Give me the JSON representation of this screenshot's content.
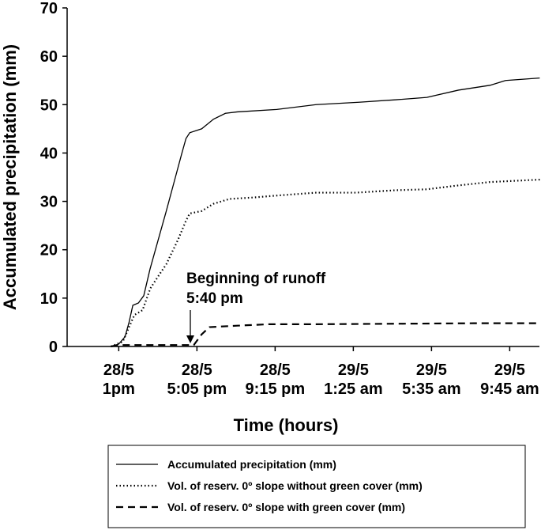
{
  "chart_data": {
    "type": "line",
    "y_label": "Accumulated precipitation  (mm)",
    "x_label": "Time (hours)",
    "annotations": [
      "Beginning of runoff",
      "5:40 pm"
    ],
    "xlim": [
      -165,
      1345
    ],
    "xticks": [
      {
        "value": 0,
        "label": "28/5\n1pm"
      },
      {
        "value": 250,
        "label": "28/5\n5:05 pm"
      },
      {
        "value": 500,
        "label": "28/5\n9:15 pm"
      },
      {
        "value": 750,
        "label": "29/5\n1:25 am"
      },
      {
        "value": 1000,
        "label": "29/5\n5:35 am"
      },
      {
        "value": 1250,
        "label": "29/5\n9:45 am"
      }
    ],
    "ylim": [
      0,
      70
    ],
    "yticks": [
      0,
      10,
      20,
      30,
      40,
      50,
      60,
      70
    ],
    "series": [
      {
        "name": "Accumulated precipitation  (mm)",
        "color": "#000000",
        "style": "solid",
        "x": [
          -25,
          0,
          20,
          33,
          45,
          63,
          80,
          100,
          126,
          152,
          177,
          202,
          215,
          227,
          265,
          303,
          341,
          379,
          505,
          631,
          768,
          884,
          985,
          1086,
          1187,
          1237,
          1346
        ],
        "values": [
          0,
          0.5,
          2,
          5,
          8.5,
          9,
          10.5,
          16,
          22,
          28,
          34,
          40,
          43,
          44.2,
          45,
          47,
          48.2,
          48.5,
          49,
          50,
          50.5,
          51,
          51.5,
          53,
          54,
          55,
          55.5
        ]
      },
      {
        "name": "Vol. of reserv. 0º slope without green cover  (mm)",
        "color": "#000000",
        "style": "dotted",
        "x": [
          -25,
          13,
          33,
          50,
          76,
          101,
          126,
          152,
          189,
          215,
          227,
          265,
          303,
          354,
          429,
          505,
          631,
          758,
          884,
          985,
          1086,
          1187,
          1346
        ],
        "values": [
          0,
          1,
          4,
          6.5,
          7.5,
          12,
          14.5,
          17,
          22,
          26,
          27.5,
          28,
          29.5,
          30.5,
          30.8,
          31.2,
          31.8,
          31.8,
          32.3,
          32.5,
          33.3,
          34,
          34.5
        ]
      },
      {
        "name": "Vol. of reserv. 0º slope with green cover  (mm)",
        "color": "#000000",
        "style": "dashed",
        "x": [
          -25,
          0,
          215,
          240,
          265,
          290,
          379,
          480,
          631,
          884,
          1136,
          1346
        ],
        "values": [
          0,
          0.3,
          0.3,
          0.3,
          2.5,
          4,
          4.3,
          4.6,
          4.6,
          4.7,
          4.8,
          4.8
        ]
      }
    ]
  }
}
